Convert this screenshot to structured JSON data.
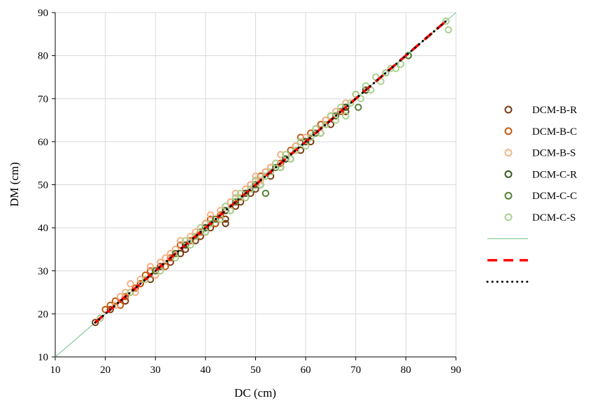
{
  "chart_data": {
    "type": "scatter",
    "xlabel": "DC (cm)",
    "ylabel": "DM (cm)",
    "xlim": [
      10,
      90
    ],
    "ylim": [
      10,
      90
    ],
    "x_ticks": [
      "10",
      "20",
      "30",
      "40",
      "50",
      "60",
      "70",
      "80",
      "90"
    ],
    "y_ticks": [
      "10",
      "20",
      "30",
      "40",
      "50",
      "60",
      "70",
      "80",
      "90"
    ],
    "grid": true,
    "legend_position": "right",
    "series": [
      {
        "name": "DCM-B-R",
        "marker": "hollow-circle",
        "color": "#7B3A10",
        "points": [
          [
            18,
            18
          ],
          [
            21,
            21
          ],
          [
            24,
            23
          ],
          [
            27,
            27
          ],
          [
            29,
            28
          ],
          [
            31,
            31
          ],
          [
            33,
            32
          ],
          [
            35,
            34
          ],
          [
            36,
            35
          ],
          [
            38,
            37
          ],
          [
            39,
            38
          ],
          [
            40,
            39
          ],
          [
            40,
            41
          ],
          [
            41,
            40
          ],
          [
            42,
            41
          ],
          [
            43,
            42
          ],
          [
            44,
            41
          ],
          [
            44,
            42
          ],
          [
            45,
            44
          ],
          [
            46,
            45
          ],
          [
            47,
            46
          ],
          [
            48,
            47
          ],
          [
            49,
            48
          ],
          [
            50,
            49
          ],
          [
            51,
            50
          ],
          [
            53,
            52
          ],
          [
            55,
            54
          ],
          [
            57,
            56
          ],
          [
            59,
            58
          ],
          [
            61,
            60
          ],
          [
            63,
            62
          ],
          [
            65,
            64
          ],
          [
            68,
            67
          ]
        ]
      },
      {
        "name": "DCM-B-C",
        "marker": "hollow-circle",
        "color": "#C55A11",
        "points": [
          [
            20,
            21
          ],
          [
            21,
            22
          ],
          [
            22,
            23
          ],
          [
            23,
            22
          ],
          [
            24,
            24
          ],
          [
            25,
            25
          ],
          [
            26,
            26
          ],
          [
            27,
            27
          ],
          [
            28,
            29
          ],
          [
            29,
            30
          ],
          [
            30,
            30
          ],
          [
            31,
            32
          ],
          [
            32,
            31
          ],
          [
            33,
            33
          ],
          [
            34,
            34
          ],
          [
            35,
            36
          ],
          [
            36,
            36
          ],
          [
            37,
            37
          ],
          [
            38,
            38
          ],
          [
            39,
            39
          ],
          [
            40,
            40
          ],
          [
            41,
            42
          ],
          [
            42,
            41
          ],
          [
            43,
            43
          ],
          [
            44,
            44
          ],
          [
            45,
            46
          ],
          [
            46,
            46
          ],
          [
            47,
            47
          ],
          [
            48,
            48
          ],
          [
            49,
            50
          ],
          [
            50,
            51
          ],
          [
            51,
            52
          ],
          [
            52,
            53
          ],
          [
            53,
            54
          ],
          [
            55,
            55
          ],
          [
            56,
            56
          ],
          [
            57,
            58
          ],
          [
            58,
            59
          ],
          [
            59,
            61
          ],
          [
            60,
            60
          ],
          [
            61,
            62
          ],
          [
            62,
            63
          ],
          [
            63,
            64
          ],
          [
            64,
            65
          ],
          [
            65,
            66
          ],
          [
            67,
            67
          ],
          [
            70,
            71
          ],
          [
            72,
            72
          ]
        ]
      },
      {
        "name": "DCM-B-S",
        "marker": "hollow-circle",
        "color": "#F4B183",
        "points": [
          [
            22,
            22
          ],
          [
            23,
            24
          ],
          [
            24,
            25
          ],
          [
            25,
            27
          ],
          [
            26,
            25
          ],
          [
            27,
            28
          ],
          [
            28,
            28
          ],
          [
            29,
            31
          ],
          [
            30,
            29
          ],
          [
            31,
            32
          ],
          [
            32,
            33
          ],
          [
            33,
            34
          ],
          [
            34,
            35
          ],
          [
            35,
            37
          ],
          [
            36,
            36
          ],
          [
            37,
            38
          ],
          [
            38,
            39
          ],
          [
            39,
            40
          ],
          [
            40,
            41
          ],
          [
            41,
            43
          ],
          [
            42,
            42
          ],
          [
            43,
            44
          ],
          [
            44,
            45
          ],
          [
            45,
            46
          ],
          [
            46,
            48
          ],
          [
            47,
            47
          ],
          [
            48,
            49
          ],
          [
            49,
            50
          ],
          [
            50,
            52
          ],
          [
            51,
            51
          ],
          [
            52,
            53
          ],
          [
            53,
            54
          ],
          [
            54,
            55
          ],
          [
            55,
            57
          ],
          [
            56,
            56
          ],
          [
            58,
            59
          ],
          [
            60,
            61
          ],
          [
            62,
            63
          ],
          [
            64,
            65
          ],
          [
            66,
            67
          ],
          [
            68,
            69
          ]
        ]
      },
      {
        "name": "DCM-C-R",
        "marker": "hollow-circle",
        "color": "#375623",
        "points": [
          [
            36,
            36
          ],
          [
            40,
            40
          ],
          [
            44,
            44
          ],
          [
            48,
            48
          ],
          [
            52,
            52
          ],
          [
            56,
            56
          ],
          [
            60,
            60
          ],
          [
            64,
            64
          ],
          [
            68,
            68
          ],
          [
            72,
            72
          ],
          [
            76,
            76
          ],
          [
            80.5,
            80
          ]
        ]
      },
      {
        "name": "DCM-C-C",
        "marker": "hollow-circle",
        "color": "#548235",
        "points": [
          [
            30,
            30
          ],
          [
            34,
            34
          ],
          [
            38,
            38
          ],
          [
            42,
            42
          ],
          [
            46,
            46
          ],
          [
            50,
            50
          ],
          [
            52,
            48
          ],
          [
            54,
            54
          ],
          [
            58,
            58
          ],
          [
            62,
            62
          ],
          [
            66,
            66
          ],
          [
            70.5,
            68
          ],
          [
            80.5,
            80
          ]
        ]
      },
      {
        "name": "DCM-C-S",
        "marker": "hollow-circle",
        "color": "#A9D18E",
        "points": [
          [
            19,
            19
          ],
          [
            25,
            25
          ],
          [
            28,
            28
          ],
          [
            31,
            30
          ],
          [
            34,
            33
          ],
          [
            36,
            37
          ],
          [
            37,
            36
          ],
          [
            38,
            38
          ],
          [
            39,
            40
          ],
          [
            40,
            39
          ],
          [
            41,
            41
          ],
          [
            43,
            42
          ],
          [
            44,
            45
          ],
          [
            45,
            44
          ],
          [
            46,
            47
          ],
          [
            47,
            48
          ],
          [
            48,
            47
          ],
          [
            49,
            49
          ],
          [
            50,
            51
          ],
          [
            51,
            50
          ],
          [
            52,
            52
          ],
          [
            53,
            53
          ],
          [
            54,
            55
          ],
          [
            55,
            54
          ],
          [
            56,
            57
          ],
          [
            57,
            56
          ],
          [
            58,
            58
          ],
          [
            59,
            60
          ],
          [
            60,
            59
          ],
          [
            61,
            61
          ],
          [
            62,
            63
          ],
          [
            63,
            62
          ],
          [
            64,
            64
          ],
          [
            65,
            66
          ],
          [
            66,
            65
          ],
          [
            67,
            68
          ],
          [
            68,
            66
          ],
          [
            69,
            69
          ],
          [
            70,
            71
          ],
          [
            71,
            70
          ],
          [
            72,
            73
          ],
          [
            73,
            72
          ],
          [
            74,
            75
          ],
          [
            75,
            74
          ],
          [
            76,
            76
          ],
          [
            77,
            77
          ],
          [
            78,
            77
          ],
          [
            79,
            78
          ],
          [
            88,
            88
          ],
          [
            88.5,
            86
          ]
        ]
      }
    ],
    "lines": [
      {
        "style": "thin-solid",
        "color": "#70C28A",
        "from": [
          10,
          10
        ],
        "to": [
          90,
          90
        ]
      },
      {
        "style": "red-dashed",
        "color": "#FF0000",
        "from": [
          18,
          18
        ],
        "to": [
          88,
          88
        ]
      },
      {
        "style": "black-dotted",
        "color": "#000000",
        "from": [
          18,
          18
        ],
        "to": [
          88,
          88
        ]
      }
    ]
  }
}
